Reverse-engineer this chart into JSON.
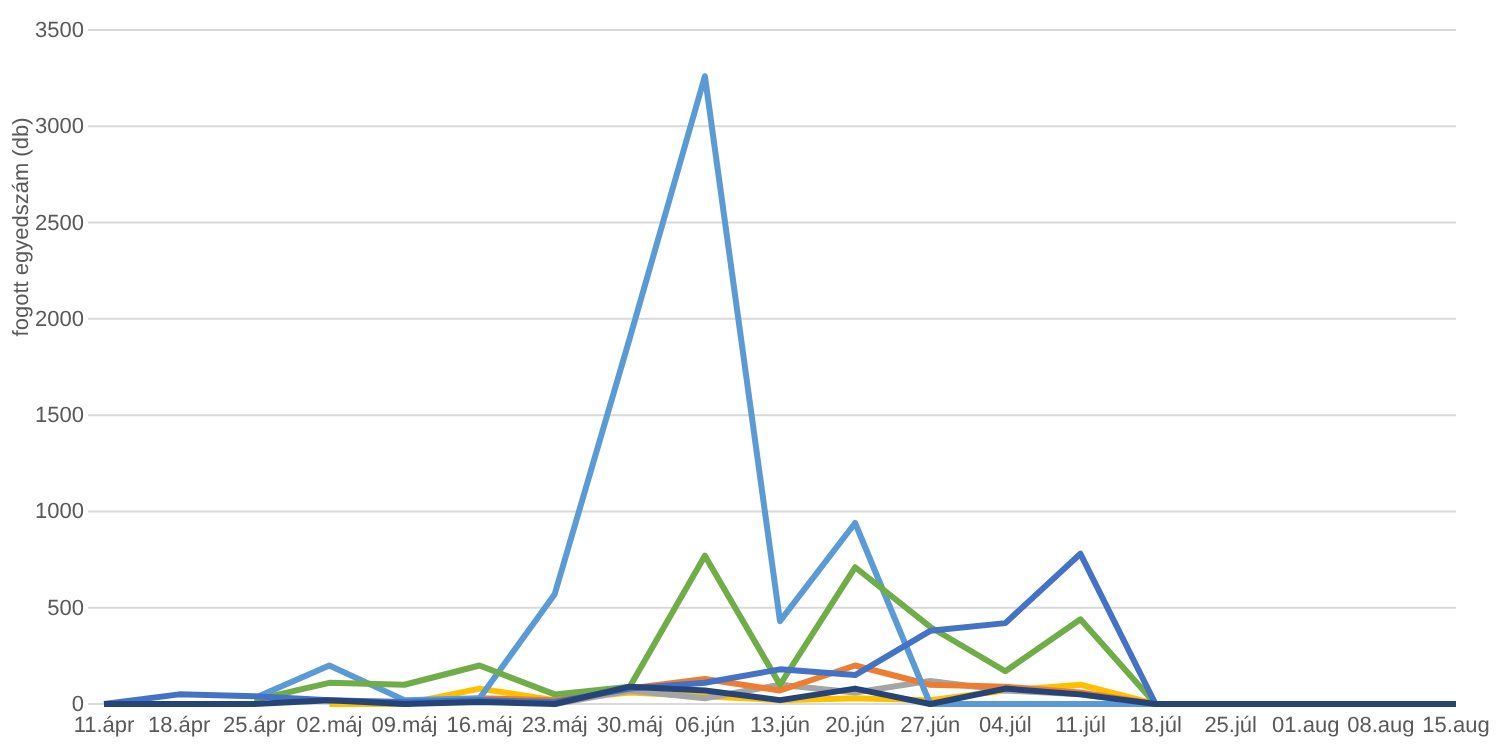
{
  "chart_data": {
    "type": "line",
    "ylabel": "fogott egyedszám (db)",
    "categories": [
      "11.ápr",
      "18.ápr",
      "25.ápr",
      "02.máj",
      "09.máj",
      "16.máj",
      "23.máj",
      "30.máj",
      "06.jún",
      "13.jún",
      "20.jún",
      "27.jún",
      "04.júl",
      "11.júl",
      "18.júl",
      "25.júl",
      "01.aug",
      "08.aug",
      "15.aug"
    ],
    "ylim": [
      0,
      3500
    ],
    "yticks": [
      0,
      500,
      1000,
      1500,
      2000,
      2500,
      3000,
      3500
    ],
    "grid": "y",
    "line_style": "solid",
    "marker": "none",
    "series": [
      {
        "color": "#ffc000",
        "values": [
          null,
          null,
          null,
          0,
          0,
          80,
          20,
          60,
          40,
          20,
          30,
          20,
          70,
          100,
          0,
          null,
          null,
          null,
          null
        ]
      },
      {
        "color": "#a5a5a5",
        "values": [
          null,
          null,
          null,
          null,
          null,
          null,
          0,
          70,
          30,
          100,
          60,
          120,
          70,
          50,
          0,
          null,
          null,
          null,
          null
        ]
      },
      {
        "color": "#ed7d31",
        "values": [
          null,
          null,
          null,
          null,
          0,
          30,
          20,
          80,
          130,
          70,
          200,
          100,
          90,
          60,
          0,
          null,
          null,
          null,
          null
        ]
      },
      {
        "color": "#5b9bd5",
        "values": [
          null,
          null,
          30,
          200,
          20,
          30,
          570,
          1900,
          3260,
          430,
          940,
          0,
          0,
          0,
          0,
          null,
          null,
          null,
          null
        ]
      },
      {
        "color": "#70ad47",
        "values": [
          null,
          null,
          20,
          110,
          100,
          200,
          50,
          90,
          770,
          100,
          710,
          400,
          170,
          440,
          0,
          null,
          null,
          null,
          null
        ]
      },
      {
        "color": "#4472c4",
        "values": [
          0,
          50,
          40,
          20,
          10,
          20,
          10,
          80,
          110,
          180,
          150,
          380,
          420,
          780,
          0,
          null,
          null,
          null,
          null
        ]
      },
      {
        "color": "#264478",
        "values": [
          0,
          0,
          0,
          20,
          0,
          10,
          0,
          90,
          70,
          20,
          80,
          0,
          80,
          50,
          0,
          0,
          0,
          0,
          0
        ]
      }
    ]
  }
}
